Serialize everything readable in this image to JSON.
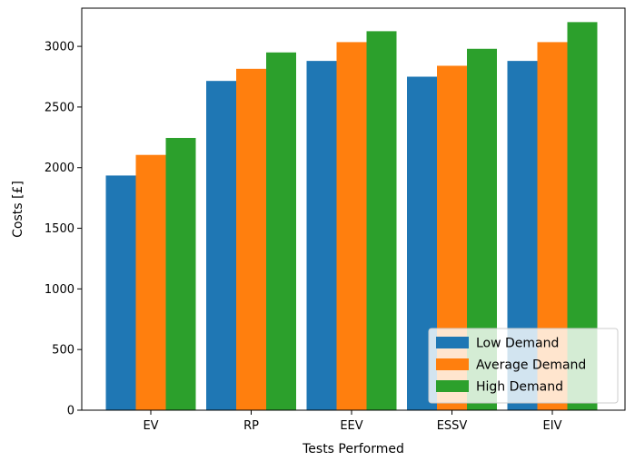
{
  "chart_data": {
    "type": "bar",
    "categories": [
      "EV",
      "RP",
      "EEV",
      "ESSV",
      "EIV"
    ],
    "series": [
      {
        "name": "Low Demand",
        "color": "#1f77b4",
        "values": [
          1935,
          2715,
          2880,
          2750,
          2880
        ]
      },
      {
        "name": "Average Demand",
        "color": "#ff7f0e",
        "values": [
          2105,
          2815,
          3035,
          2840,
          3035
        ]
      },
      {
        "name": "High Demand",
        "color": "#2ca02c",
        "values": [
          2245,
          2950,
          3125,
          2980,
          3200
        ]
      }
    ],
    "xlabel": "Tests Performed",
    "ylabel": "Costs [£]",
    "ylim": [
      0,
      3315
    ],
    "yticks": [
      0,
      500,
      1000,
      1500,
      2000,
      2500,
      3000
    ],
    "grid": false,
    "legend_position": "bottom-right"
  }
}
